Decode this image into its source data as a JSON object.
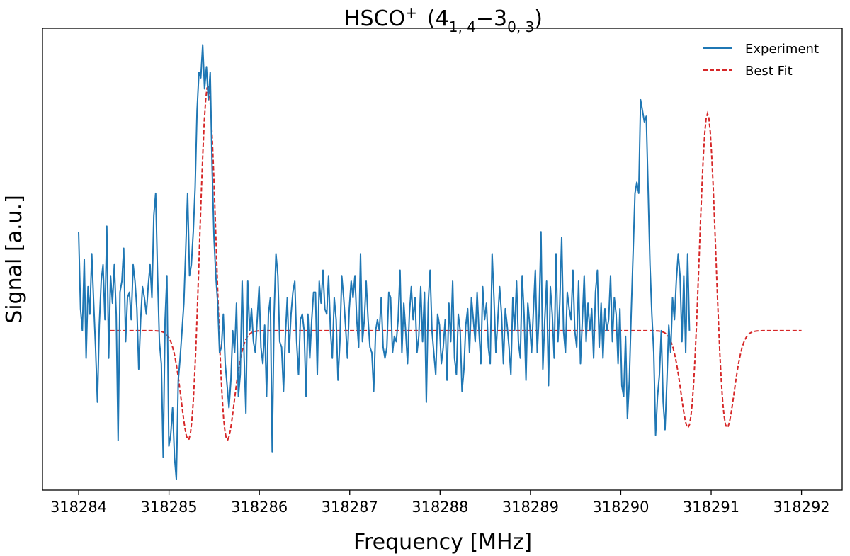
{
  "chart_data": {
    "type": "line",
    "title": {
      "base": "HSCO",
      "sup": "+",
      "open": "(4",
      "sub1": "1, 4",
      "minus": "−",
      "mid": "3",
      "sub2": "0, 3",
      "close": ")"
    },
    "xlabel": "Frequency [MHz]",
    "ylabel": "Signal [a.u.]",
    "xlim": [
      318283.6,
      318292.45
    ],
    "ylim": [
      -0.29,
      0.55
    ],
    "yticks_shown": false,
    "grid": false,
    "legend_position": "top-right",
    "xtick_labels": [
      "318284",
      "318285",
      "318286",
      "318287",
      "318288",
      "318289",
      "318290",
      "318291",
      "318292"
    ],
    "xticks": [
      318284,
      318285,
      318286,
      318287,
      318288,
      318289,
      318290,
      318291,
      318292
    ],
    "experiment": {
      "name": "Experiment",
      "color": "#1f77b4",
      "x_start": 318284.0,
      "x_step": 0.0208,
      "values": [
        0.18,
        0.04,
        0.0,
        0.13,
        -0.05,
        0.08,
        0.03,
        0.14,
        0.05,
        -0.03,
        -0.13,
        0.01,
        0.09,
        0.12,
        0.02,
        0.19,
        -0.05,
        0.1,
        0.05,
        0.12,
        0.03,
        -0.2,
        0.07,
        0.09,
        0.15,
        -0.02,
        0.06,
        0.07,
        0.02,
        0.12,
        0.09,
        0.04,
        -0.07,
        0.02,
        0.08,
        0.06,
        0.03,
        0.08,
        0.12,
        0.06,
        0.21,
        0.25,
        0.1,
        -0.02,
        -0.06,
        -0.23,
        0.02,
        0.1,
        -0.21,
        -0.19,
        -0.14,
        -0.23,
        -0.27,
        -0.09,
        -0.05,
        0.0,
        0.05,
        0.15,
        0.25,
        0.1,
        0.12,
        0.18,
        0.26,
        0.4,
        0.47,
        0.46,
        0.52,
        0.44,
        0.48,
        0.42,
        0.47,
        0.3,
        0.17,
        0.1,
        0.05,
        -0.04,
        -0.03,
        0.03,
        -0.06,
        -0.1,
        -0.14,
        -0.09,
        0.0,
        -0.04,
        0.05,
        -0.12,
        -0.08,
        0.09,
        -0.04,
        -0.15,
        0.09,
        0.0,
        0.04,
        -0.02,
        -0.04,
        0.02,
        0.08,
        -0.03,
        -0.06,
        0.01,
        -0.12,
        0.03,
        0.06,
        -0.22,
        0.03,
        0.14,
        0.1,
        -0.02,
        -0.03,
        -0.11,
        -0.01,
        0.06,
        -0.04,
        0.03,
        0.07,
        0.09,
        -0.02,
        -0.08,
        0.02,
        0.03,
        0.0,
        -0.12,
        0.03,
        -0.05,
        0.02,
        0.07,
        0.07,
        -0.08,
        0.09,
        0.05,
        0.11,
        0.04,
        0.03,
        0.1,
        0.0,
        -0.05,
        0.06,
        0.02,
        -0.09,
        -0.02,
        0.1,
        0.06,
        0.01,
        -0.05,
        0.04,
        0.09,
        0.06,
        0.1,
        0.02,
        -0.03,
        0.14,
        -0.02,
        0.02,
        0.09,
        0.02,
        -0.03,
        -0.04,
        -0.11,
        0.0,
        0.02,
        0.0,
        0.06,
        -0.03,
        -0.05,
        -0.03,
        0.07,
        0.06,
        -0.04,
        -0.01,
        -0.02,
        0.02,
        0.11,
        -0.04,
        0.05,
        0.0,
        -0.06,
        0.03,
        0.08,
        0.02,
        0.06,
        -0.04,
        -0.01,
        0.08,
        -0.02,
        0.07,
        -0.13,
        0.05,
        0.11,
        0.0,
        -0.04,
        -0.08,
        0.03,
        0.01,
        -0.06,
        -0.03,
        0.02,
        -0.09,
        0.05,
        -0.02,
        0.09,
        -0.05,
        -0.08,
        0.03,
        0.0,
        -0.11,
        -0.07,
        0.01,
        0.04,
        -0.04,
        0.06,
        0.02,
        -0.02,
        0.07,
        0.0,
        -0.06,
        0.08,
        0.02,
        0.05,
        -0.03,
        -0.06,
        0.14,
        0.06,
        -0.04,
        0.02,
        0.08,
        0.03,
        -0.06,
        0.04,
        0.01,
        -0.03,
        -0.08,
        0.06,
        0.0,
        0.09,
        -0.02,
        -0.05,
        0.1,
        0.03,
        -0.09,
        0.05,
        0.01,
        -0.04,
        0.04,
        0.11,
        -0.04,
        0.03,
        0.18,
        -0.07,
        0.02,
        0.09,
        -0.1,
        0.08,
        0.03,
        -0.05,
        0.14,
        -0.02,
        0.05,
        0.17,
        0.0,
        -0.04,
        0.07,
        0.04,
        0.02,
        0.11,
        0.0,
        -0.03,
        0.09,
        -0.06,
        0.02,
        0.1,
        -0.02,
        0.05,
        0.0,
        0.04,
        -0.05,
        0.07,
        0.11,
        -0.03,
        0.05,
        -0.05,
        0.04,
        0.0,
        0.02,
        0.1,
        -0.02,
        0.06,
        0.03,
        -0.06,
        0.04,
        -0.1,
        -0.12,
        -0.01,
        -0.16,
        -0.09,
        0.03,
        0.14,
        0.25,
        0.27,
        0.25,
        0.42,
        0.4,
        0.38,
        0.39,
        0.26,
        0.12,
        0.03,
        -0.04,
        -0.19,
        -0.12,
        -0.08,
        0.0,
        -0.13,
        -0.18,
        -0.09,
        0.01,
        -0.04,
        0.06,
        0.02,
        0.09,
        0.14,
        0.1,
        -0.02,
        0.1,
        -0.04,
        0.14,
        0.0
      ]
    },
    "fit": {
      "name": "Best Fit",
      "color": "#d62728",
      "x_start": 318284.35,
      "x_end": 318292.0,
      "peaks": [
        {
          "center": 318285.43,
          "amplitude": 0.445,
          "width": 0.125
        },
        {
          "center": 318290.96,
          "amplitude": 0.395,
          "width": 0.125
        }
      ],
      "baseline": 0.0
    }
  }
}
